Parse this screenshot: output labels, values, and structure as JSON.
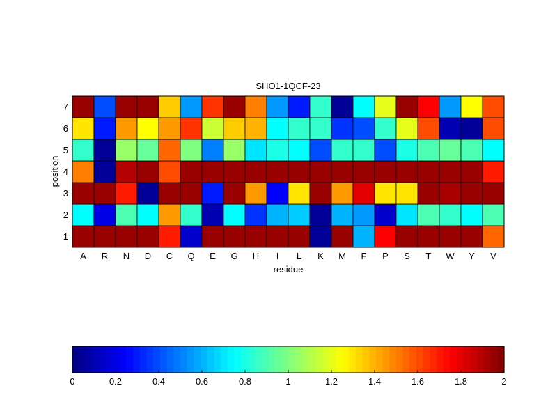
{
  "chart_data": {
    "type": "heatmap",
    "title": "SHO1-1QCF-23",
    "xlabel": "residue",
    "ylabel": "position",
    "x_categories": [
      "A",
      "R",
      "N",
      "D",
      "C",
      "Q",
      "E",
      "G",
      "H",
      "I",
      "L",
      "K",
      "M",
      "F",
      "P",
      "S",
      "T",
      "W",
      "Y",
      "V"
    ],
    "y_categories": [
      "1",
      "2",
      "3",
      "4",
      "5",
      "6",
      "7"
    ],
    "values": [
      [
        1.95,
        1.95,
        1.95,
        1.95,
        1.7,
        0.15,
        1.95,
        1.95,
        1.95,
        1.95,
        1.95,
        0.05,
        1.95,
        0.6,
        1.75,
        1.95,
        1.95,
        1.95,
        1.95,
        1.55
      ],
      [
        0.75,
        0.2,
        0.9,
        0.75,
        1.45,
        0.85,
        0.1,
        0.75,
        0.35,
        0.6,
        0.65,
        0.05,
        0.6,
        0.55,
        0.15,
        0.7,
        0.9,
        0.85,
        0.75,
        0.9
      ],
      [
        1.95,
        1.95,
        1.7,
        0.05,
        1.95,
        1.95,
        0.3,
        1.95,
        1.45,
        0.25,
        1.3,
        1.95,
        1.45,
        1.8,
        1.3,
        1.3,
        1.95,
        1.92,
        1.95,
        1.95
      ],
      [
        1.5,
        0.05,
        1.9,
        1.95,
        1.6,
        1.95,
        1.95,
        1.95,
        1.95,
        1.95,
        1.95,
        1.95,
        1.95,
        1.95,
        1.95,
        1.95,
        1.95,
        1.95,
        1.95,
        1.7
      ],
      [
        0.85,
        0.05,
        1.05,
        0.95,
        1.55,
        1.0,
        0.5,
        1.05,
        0.7,
        0.8,
        0.75,
        0.4,
        0.85,
        0.85,
        0.4,
        0.8,
        0.9,
        0.95,
        0.9,
        0.75
      ],
      [
        1.3,
        0.3,
        1.45,
        1.25,
        1.45,
        1.65,
        1.15,
        1.35,
        1.4,
        0.75,
        0.85,
        0.85,
        0.35,
        0.4,
        0.85,
        1.2,
        1.6,
        0.1,
        0.05,
        1.6
      ],
      [
        1.95,
        0.4,
        1.95,
        1.95,
        1.35,
        0.55,
        1.65,
        1.95,
        1.5,
        0.55,
        0.3,
        0.85,
        0.05,
        0.75,
        1.2,
        1.95,
        1.75,
        0.55,
        1.25,
        1.6
      ]
    ],
    "colorbar": {
      "range": [
        0,
        2
      ],
      "ticks": [
        "0",
        "0.2",
        "0.4",
        "0.6",
        "0.8",
        "1",
        "1.2",
        "1.4",
        "1.6",
        "1.8",
        "2"
      ],
      "colormap": "jet",
      "placement": "bottom"
    }
  }
}
